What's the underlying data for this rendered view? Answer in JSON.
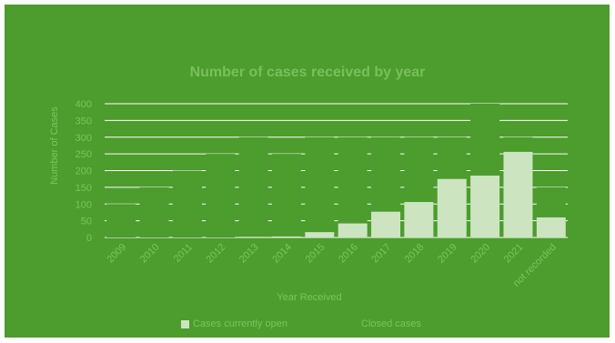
{
  "chart_data": {
    "type": "bar",
    "title": "Number of cases received by year",
    "xlabel": "Year Received",
    "ylabel": "Number of Cases",
    "ylim": [
      0,
      400
    ],
    "yticks": [
      0,
      50,
      100,
      150,
      200,
      250,
      300,
      350,
      400
    ],
    "categories": [
      "2009",
      "2010",
      "2011",
      "2012",
      "2013",
      "2014",
      "2015",
      "2016",
      "2017",
      "2018",
      "2019",
      "2020",
      "2021",
      "not recorded"
    ],
    "series": [
      {
        "name": "Cases currently open",
        "color": "#cce5c0",
        "values": [
          0,
          0,
          0,
          0,
          2,
          3,
          16,
          42,
          77,
          106,
          175,
          185,
          256,
          60
        ]
      },
      {
        "name": "Closed cases",
        "color": "#4c9c2e",
        "values": [
          100,
          150,
          200,
          250,
          300,
          250,
          300,
          300,
          300,
          300,
          300,
          400,
          300,
          150
        ]
      }
    ],
    "grid": true,
    "legend_position": "bottom"
  },
  "colors": {
    "background": "#4c9c2e",
    "bar": "#cce5c0",
    "gridline": "#ffffff",
    "text": "#7cc45e"
  }
}
